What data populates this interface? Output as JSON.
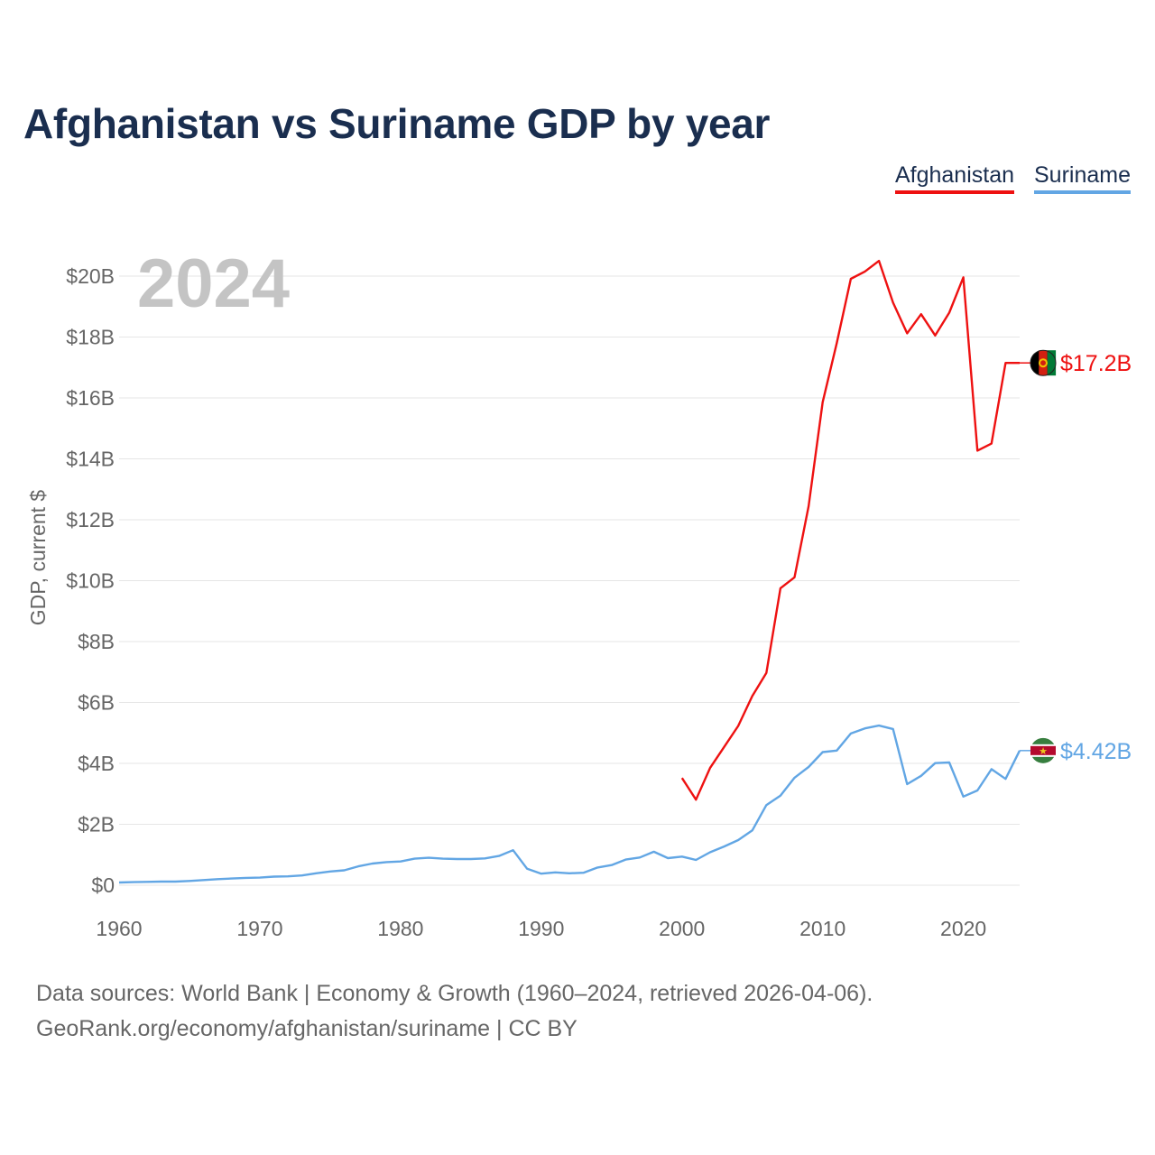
{
  "title": "Afghanistan vs Suriname GDP by year",
  "legend": {
    "afghanistan": "Afghanistan",
    "suriname": "Suriname"
  },
  "year_label": "2024",
  "footer": {
    "line1": "Data sources: World Bank | Economy & Growth (1960–2024, retrieved 2026-04-06).",
    "line2": "GeoRank.org/economy/afghanistan/suriname | CC BY"
  },
  "colors": {
    "afghanistan": "#ee1111",
    "suriname": "#62a6e4",
    "grid": "#e6e6e6"
  },
  "chart_data": {
    "type": "line",
    "title": "Afghanistan vs Suriname GDP by year",
    "xlabel": "",
    "ylabel": "GDP, current $",
    "xlim": [
      1960,
      2024
    ],
    "ylim": [
      0,
      20
    ],
    "x_ticks": [
      1960,
      1970,
      1980,
      1990,
      2000,
      2010,
      2020
    ],
    "y_ticks": [
      0,
      2,
      4,
      6,
      8,
      10,
      12,
      14,
      16,
      18,
      20
    ],
    "y_tick_labels": [
      "$0",
      "$2B",
      "$4B",
      "$6B",
      "$8B",
      "$10B",
      "$12B",
      "$14B",
      "$16B",
      "$18B",
      "$20B"
    ],
    "units": "billions of current US$",
    "series": [
      {
        "name": "Afghanistan",
        "color": "#ee1111",
        "end_label": "$17.2B",
        "x": [
          2000,
          2001,
          2002,
          2003,
          2004,
          2005,
          2006,
          2007,
          2008,
          2009,
          2010,
          2011,
          2012,
          2013,
          2014,
          2015,
          2016,
          2017,
          2018,
          2019,
          2020,
          2021,
          2022,
          2023,
          2024
        ],
        "values": [
          3.52,
          2.81,
          3.85,
          4.54,
          5.23,
          6.21,
          6.97,
          9.75,
          10.11,
          12.44,
          15.86,
          17.8,
          19.91,
          20.15,
          20.5,
          19.13,
          18.12,
          18.75,
          18.05,
          18.8,
          19.96,
          14.27,
          14.5,
          17.15,
          17.15
        ]
      },
      {
        "name": "Suriname",
        "color": "#62a6e4",
        "end_label": "$4.42B",
        "x": [
          1960,
          1961,
          1962,
          1963,
          1964,
          1965,
          1966,
          1967,
          1968,
          1969,
          1970,
          1971,
          1972,
          1973,
          1974,
          1975,
          1976,
          1977,
          1978,
          1979,
          1980,
          1981,
          1982,
          1983,
          1984,
          1985,
          1986,
          1987,
          1988,
          1989,
          1990,
          1991,
          1992,
          1993,
          1994,
          1995,
          1996,
          1997,
          1998,
          1999,
          2000,
          2001,
          2002,
          2003,
          2004,
          2005,
          2006,
          2007,
          2008,
          2009,
          2010,
          2011,
          2012,
          2013,
          2014,
          2015,
          2016,
          2017,
          2018,
          2019,
          2020,
          2021,
          2022,
          2023,
          2024
        ],
        "values": [
          0.09,
          0.1,
          0.11,
          0.12,
          0.12,
          0.14,
          0.17,
          0.2,
          0.22,
          0.24,
          0.25,
          0.28,
          0.29,
          0.32,
          0.39,
          0.45,
          0.49,
          0.62,
          0.71,
          0.76,
          0.78,
          0.87,
          0.9,
          0.87,
          0.86,
          0.86,
          0.88,
          0.96,
          1.15,
          0.54,
          0.38,
          0.42,
          0.39,
          0.41,
          0.58,
          0.66,
          0.84,
          0.91,
          1.1,
          0.89,
          0.94,
          0.83,
          1.08,
          1.27,
          1.48,
          1.8,
          2.63,
          2.94,
          3.53,
          3.88,
          4.37,
          4.42,
          4.98,
          5.15,
          5.24,
          5.13,
          3.32,
          3.59,
          4.01,
          4.03,
          2.91,
          3.11,
          3.81,
          3.49,
          4.42
        ]
      }
    ]
  }
}
